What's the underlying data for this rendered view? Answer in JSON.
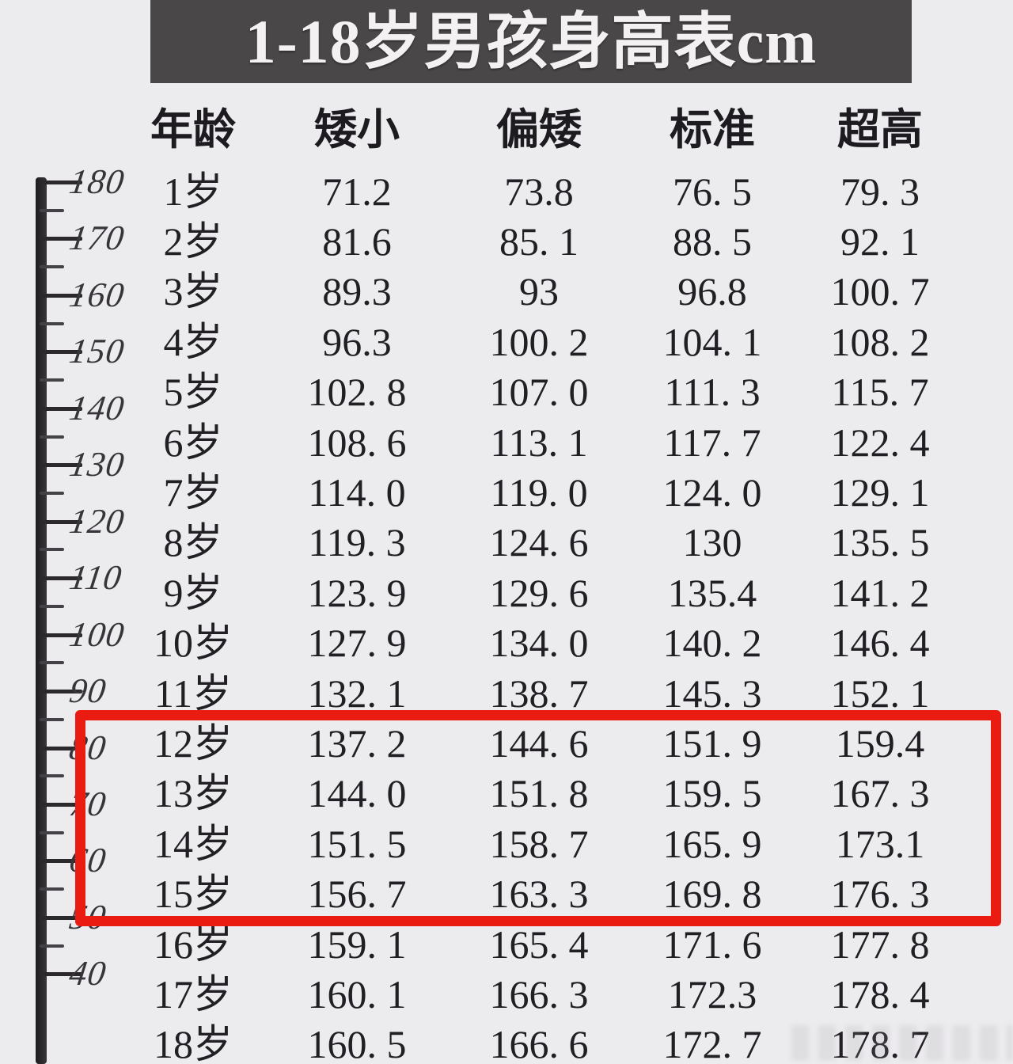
{
  "title": "1-18岁男孩身高表cm",
  "colors": {
    "page_bg": "#ecebee",
    "banner_bg": "#4a4749",
    "banner_text": "#f3f1f2",
    "table_text": "#211f24",
    "highlight_red": "#ea1b10",
    "ruler_bar": "#2c292d"
  },
  "ruler": {
    "unit_labels": [
      "180",
      "170",
      "160",
      "150",
      "140",
      "130",
      "120",
      "110",
      "100",
      "90",
      "80",
      "70",
      "60",
      "50",
      "40"
    ]
  },
  "table": {
    "headers": [
      "年龄",
      "矮小",
      "偏矮",
      "标准",
      "超高"
    ],
    "rows": [
      {
        "age": "1岁",
        "values": [
          "71.2",
          "73.8",
          "76. 5",
          "79. 3"
        ]
      },
      {
        "age": "2岁",
        "values": [
          "81.6",
          "85. 1",
          "88. 5",
          "92. 1"
        ]
      },
      {
        "age": "3岁",
        "values": [
          "89.3",
          "93",
          "96.8",
          "100. 7"
        ]
      },
      {
        "age": "4岁",
        "values": [
          "96.3",
          "100. 2",
          "104. 1",
          "108. 2"
        ]
      },
      {
        "age": "5岁",
        "values": [
          "102. 8",
          "107. 0",
          "111. 3",
          "115. 7"
        ]
      },
      {
        "age": "6岁",
        "values": [
          "108. 6",
          "113. 1",
          "117. 7",
          "122. 4"
        ]
      },
      {
        "age": "7岁",
        "values": [
          "114. 0",
          "119. 0",
          "124. 0",
          "129. 1"
        ]
      },
      {
        "age": "8岁",
        "values": [
          "119. 3",
          "124. 6",
          "130",
          "135. 5"
        ]
      },
      {
        "age": "9岁",
        "values": [
          "123. 9",
          "129. 6",
          "135.4",
          "141. 2"
        ]
      },
      {
        "age": "10岁",
        "values": [
          "127. 9",
          "134. 0",
          "140. 2",
          "146. 4"
        ]
      },
      {
        "age": "11岁",
        "values": [
          "132. 1",
          "138. 7",
          "145. 3",
          "152. 1"
        ]
      },
      {
        "age": "12岁",
        "values": [
          "137. 2",
          "144. 6",
          "151. 9",
          "159.4"
        ]
      },
      {
        "age": "13岁",
        "values": [
          "144. 0",
          "151. 8",
          "159. 5",
          "167. 3"
        ]
      },
      {
        "age": "14岁",
        "values": [
          "151. 5",
          "158. 7",
          "165. 9",
          "173.1"
        ]
      },
      {
        "age": "15岁",
        "values": [
          "156. 7",
          "163. 3",
          "169. 8",
          "176. 3"
        ]
      },
      {
        "age": "16岁",
        "values": [
          "159. 1",
          "165. 4",
          "171. 6",
          "177. 8"
        ]
      },
      {
        "age": "17岁",
        "values": [
          "160. 1",
          "166. 3",
          "172.3",
          "178. 4"
        ]
      },
      {
        "age": "18岁",
        "values": [
          "160. 5",
          "166. 6",
          "172. 7",
          "178. 7"
        ]
      }
    ],
    "highlighted_ages": [
      "12岁",
      "13岁",
      "14岁",
      "15岁"
    ]
  },
  "chart_data": {
    "type": "table",
    "title": "1-18岁男孩身高表cm",
    "columns": [
      "年龄",
      "矮小",
      "偏矮",
      "标准",
      "超高"
    ],
    "unit": "cm",
    "categories": [
      "1岁",
      "2岁",
      "3岁",
      "4岁",
      "5岁",
      "6岁",
      "7岁",
      "8岁",
      "9岁",
      "10岁",
      "11岁",
      "12岁",
      "13岁",
      "14岁",
      "15岁",
      "16岁",
      "17岁",
      "18岁"
    ],
    "series": [
      {
        "name": "矮小",
        "values": [
          71.2,
          81.6,
          89.3,
          96.3,
          102.8,
          108.6,
          114.0,
          119.3,
          123.9,
          127.9,
          132.1,
          137.2,
          144.0,
          151.5,
          156.7,
          159.1,
          160.1,
          160.5
        ]
      },
      {
        "name": "偏矮",
        "values": [
          73.8,
          85.1,
          93,
          100.2,
          107.0,
          113.1,
          119.0,
          124.6,
          129.6,
          134.0,
          138.7,
          144.6,
          151.8,
          158.7,
          163.3,
          165.4,
          166.3,
          166.6
        ]
      },
      {
        "name": "标准",
        "values": [
          76.5,
          88.5,
          96.8,
          104.1,
          111.3,
          117.7,
          124.0,
          130,
          135.4,
          140.2,
          145.3,
          151.9,
          159.5,
          165.9,
          169.8,
          171.6,
          172.3,
          172.7
        ]
      },
      {
        "name": "超高",
        "values": [
          79.3,
          92.1,
          100.7,
          108.2,
          115.7,
          122.4,
          129.1,
          135.5,
          141.2,
          146.4,
          152.1,
          159.4,
          167.3,
          173.1,
          176.3,
          177.8,
          178.4,
          178.7
        ]
      }
    ],
    "annotations": [
      "红色方框标出12岁至15岁四行",
      "左侧标尺刻度 180 至 40"
    ]
  }
}
